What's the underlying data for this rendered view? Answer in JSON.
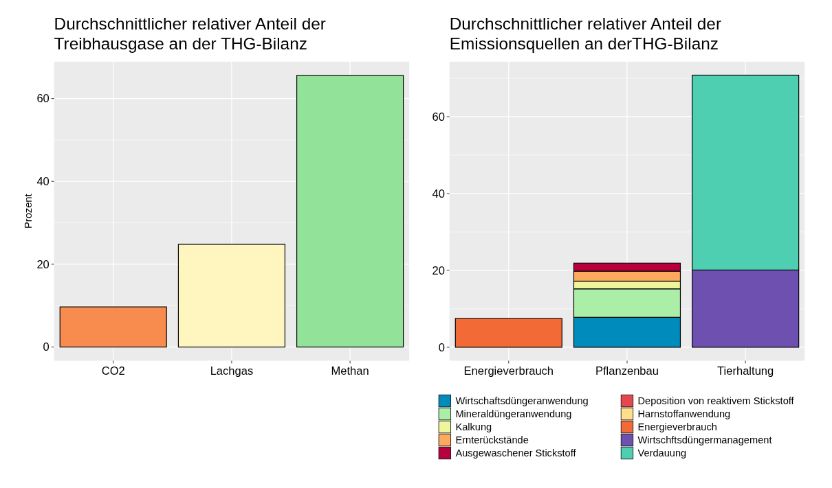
{
  "chart_data": [
    {
      "type": "bar",
      "title": "Durchschnittlicher relativer Anteil der Treibhausgase an der THG-Bilanz",
      "ylabel": "Prozent",
      "categories": [
        "CO2",
        "Lachgas",
        "Methan"
      ],
      "values": [
        9.7,
        24.8,
        65.6
      ],
      "colors": [
        "#f88b4e",
        "#fff5bf",
        "#93e29a"
      ],
      "ylim": [
        -3.3,
        68.9
      ],
      "yticks": [
        0,
        20,
        40,
        60
      ],
      "grid": true,
      "legend": false
    },
    {
      "type": "bar",
      "title": "Durchschnittlicher relativer Anteil der Emissionsquellen an derTHG-Bilanz",
      "categories": [
        "Energieverbrauch",
        "Pflanzenbau",
        "Tierhaltung"
      ],
      "stacked": true,
      "ylim": [
        -3.5,
        74.3
      ],
      "yticks": [
        0,
        20,
        40,
        60
      ],
      "grid": true,
      "legend": "bottom",
      "series": [
        {
          "name": "Wirtschaftsdüngeranwendung",
          "color": "#008bbd",
          "values": [
            null,
            7.8,
            null
          ]
        },
        {
          "name": "Mineraldüngeranwendung",
          "color": "#abeea8",
          "values": [
            null,
            7.4,
            null
          ]
        },
        {
          "name": "Kalkung",
          "color": "#eef59a",
          "values": [
            null,
            2.0,
            null
          ]
        },
        {
          "name": "Ernterückstände",
          "color": "#fdaa5e",
          "values": [
            null,
            2.6,
            null
          ]
        },
        {
          "name": "Ausgewaschener Stickstoff",
          "color": "#b8003e",
          "values": [
            null,
            2.1,
            null
          ]
        },
        {
          "name": "Deposition von reaktivem Stickstoff",
          "color": "#e8464f",
          "values": [
            null,
            null,
            null
          ]
        },
        {
          "name": "Harnstoffanwendung",
          "color": "#ffdf8a",
          "values": [
            null,
            null,
            null
          ]
        },
        {
          "name": "Energieverbrauch",
          "color": "#f26a35",
          "values": [
            7.5,
            null,
            null
          ]
        },
        {
          "name": "Wirtschftsdüngermanagement",
          "color": "#6e50b1",
          "values": [
            null,
            null,
            20.1
          ]
        },
        {
          "name": "Verdauung",
          "color": "#4fcfb1",
          "values": [
            null,
            null,
            50.7
          ]
        }
      ]
    }
  ]
}
